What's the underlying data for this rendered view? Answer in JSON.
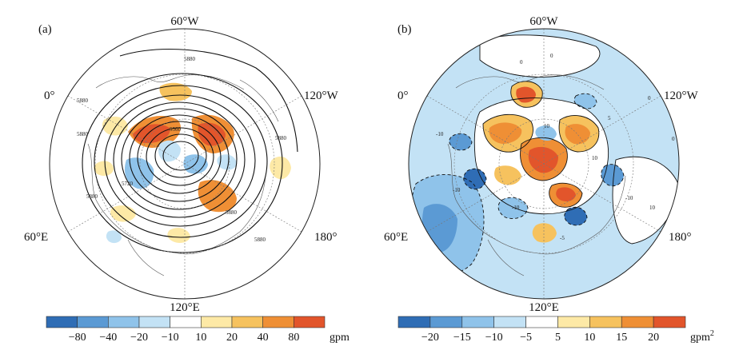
{
  "panels": [
    {
      "id": "a",
      "label": "(a)",
      "lon_labels": {
        "top": "60°W",
        "left": "0°",
        "right": "120°W",
        "lower_left": "60°E",
        "lower_right": "180°",
        "bottom": "120°E"
      },
      "contour_labels": [
        "5880",
        "5880",
        "5880",
        "5560",
        "5720",
        "5880",
        "5880",
        "5880",
        "5880"
      ],
      "colorbar": {
        "colors": [
          "#2f6db5",
          "#5b9ad4",
          "#8fc3ea",
          "#c3e2f5",
          "#ffffff",
          "#fde9a6",
          "#f6c25e",
          "#ef8f35",
          "#e2552b"
        ],
        "ticks": [
          "−80",
          "−40",
          "−20",
          "−10",
          "10",
          "20",
          "40",
          "80"
        ],
        "unit": "gpm"
      }
    },
    {
      "id": "b",
      "label": "(b)",
      "lon_labels": {
        "top": "60°W",
        "left": "0°",
        "right": "120°W",
        "lower_left": "60°E",
        "lower_right": "180°",
        "bottom": "120°E"
      },
      "contour_labels": [
        "0",
        "0",
        "0",
        "-10",
        "-10",
        "-10",
        "10",
        "10",
        "-5",
        "5",
        "-10",
        "10",
        "0"
      ],
      "colorbar": {
        "colors": [
          "#2f6db5",
          "#5b9ad4",
          "#8fc3ea",
          "#c3e2f5",
          "#ffffff",
          "#fde9a6",
          "#f6c25e",
          "#ef8f35",
          "#e2552b"
        ],
        "ticks": [
          "−20",
          "−15",
          "−10",
          "−5",
          "5",
          "10",
          "15",
          "20"
        ],
        "unit": "gpm",
        "unit_sup": "2"
      }
    }
  ]
}
